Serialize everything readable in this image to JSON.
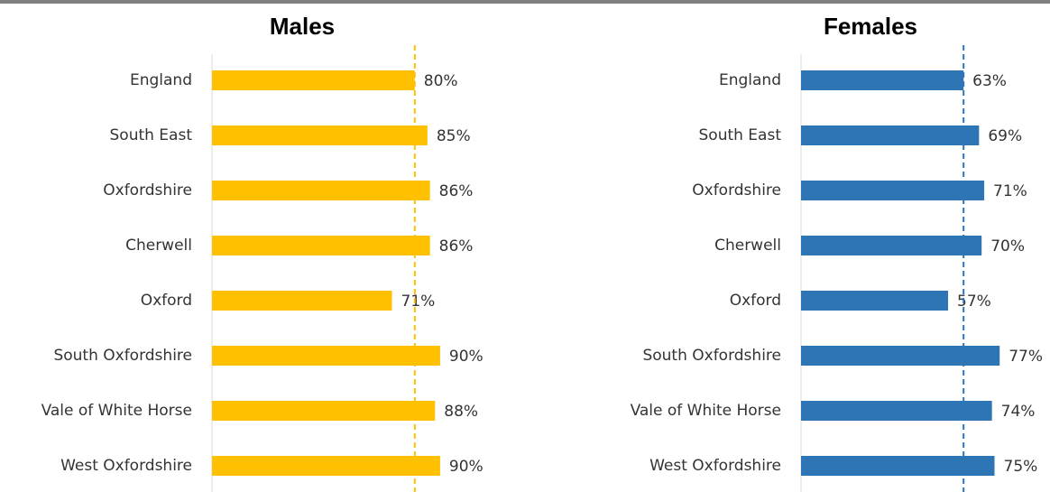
{
  "chart_data": [
    {
      "type": "bar",
      "orientation": "horizontal",
      "title": "Males",
      "categories": [
        "England",
        "South East",
        "Oxfordshire",
        "Cherwell",
        "Oxford",
        "South Oxfordshire",
        "Vale of White Horse",
        "West Oxfordshire"
      ],
      "values": [
        80,
        85,
        86,
        86,
        71,
        90,
        88,
        90
      ],
      "value_labels": [
        "80%",
        "85%",
        "86%",
        "86%",
        "71%",
        "90%",
        "88%",
        "90%"
      ],
      "color": "#ffc000",
      "xlim": [
        0,
        100
      ]
    },
    {
      "type": "bar",
      "orientation": "horizontal",
      "title": "Females",
      "categories": [
        "England",
        "South East",
        "Oxfordshire",
        "Cherwell",
        "Oxford",
        "South Oxfordshire",
        "Vale of White Horse",
        "West Oxfordshire"
      ],
      "values": [
        63,
        69,
        71,
        70,
        57,
        77,
        74,
        75
      ],
      "value_labels": [
        "63%",
        "69%",
        "71%",
        "70%",
        "57%",
        "77%",
        "74%",
        "75%"
      ],
      "color": "#2e75b6",
      "xlim": [
        0,
        100
      ]
    }
  ]
}
